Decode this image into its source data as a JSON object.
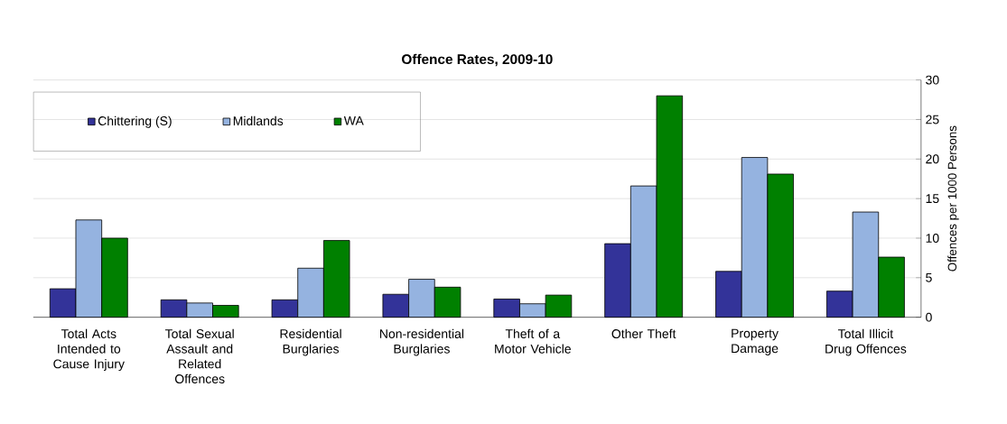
{
  "chart_data": {
    "type": "bar",
    "title": "Offence Rates, 2009-10",
    "ylabel": "Offences per 1000 Persons",
    "categories": [
      "Total Acts Intended to Cause Injury",
      "Total Sexual Assault and Related Offences",
      "Residential Burglaries",
      "Non-residential Burglaries",
      "Theft of a Motor Vehicle",
      "Other Theft",
      "Property Damage",
      "Total Illicit Drug Offences"
    ],
    "series": [
      {
        "name": "Chittering (S)",
        "color": "#333399",
        "values": [
          3.6,
          2.2,
          2.2,
          2.9,
          2.3,
          9.3,
          5.8,
          3.3
        ]
      },
      {
        "name": "Midlands",
        "color": "#95b3e0",
        "values": [
          12.3,
          1.8,
          6.2,
          4.8,
          1.7,
          16.6,
          20.2,
          13.3
        ]
      },
      {
        "name": "WA",
        "color": "#008000",
        "values": [
          10.0,
          1.5,
          9.7,
          3.8,
          2.8,
          28.0,
          18.1,
          7.6
        ]
      }
    ],
    "ylim": [
      0,
      30
    ],
    "yticks": [
      0,
      5,
      10,
      15,
      20,
      25,
      30
    ],
    "grid": "y",
    "legend": "top left"
  }
}
